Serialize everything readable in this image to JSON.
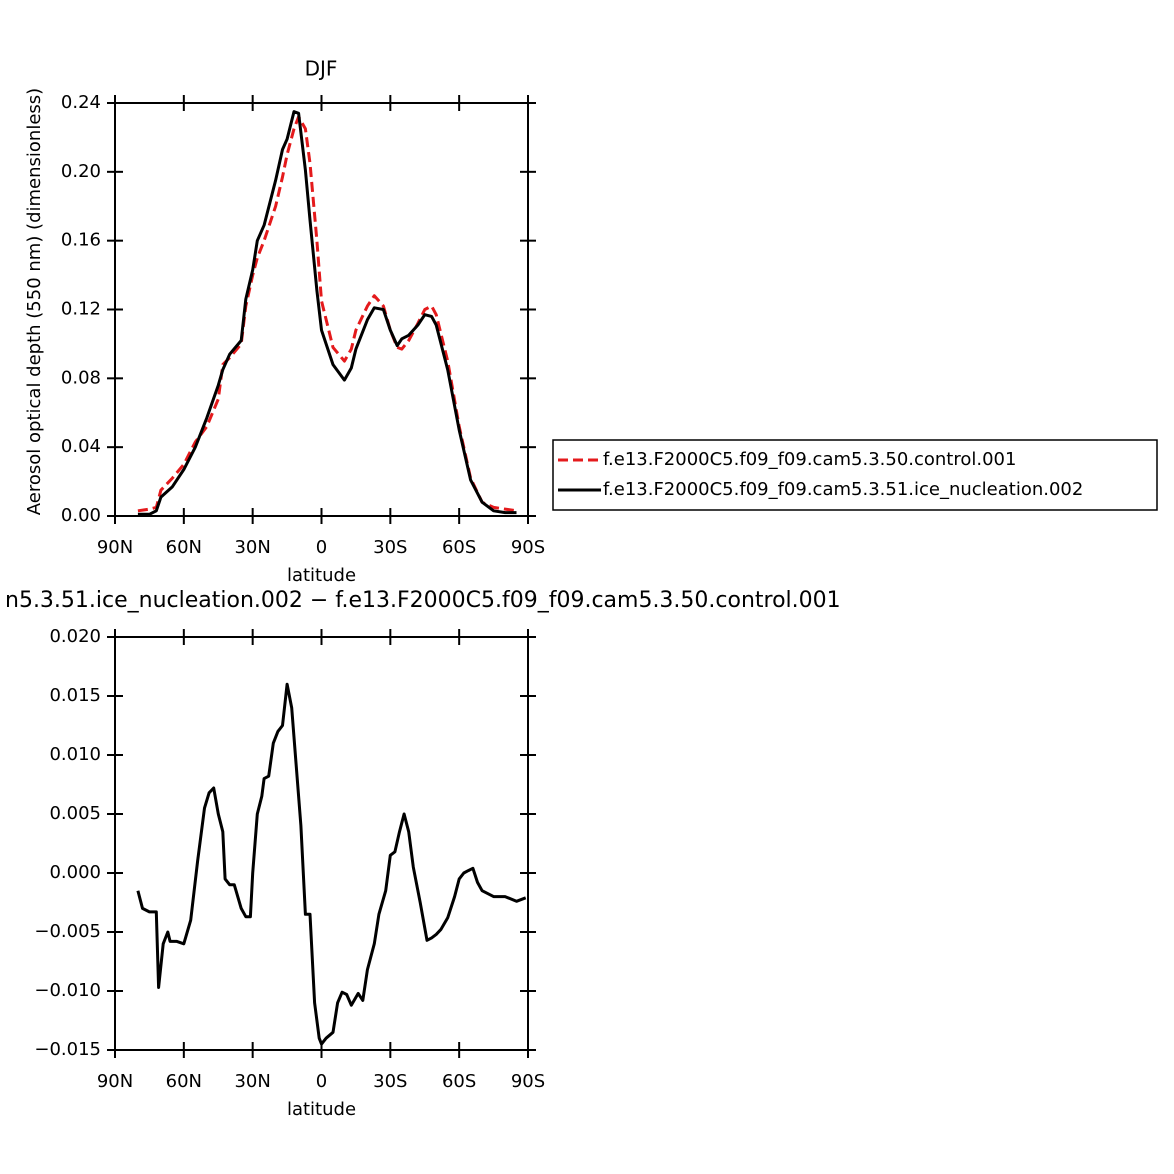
{
  "chart_data": [
    {
      "type": "line",
      "title": "DJF",
      "x_label": "latitude",
      "y_label": "Aerosol optical depth (550 nm) (dimensionless)",
      "xlim": [
        90,
        -90
      ],
      "ylim": [
        0,
        0.24
      ],
      "xticks": [
        {
          "value": 90,
          "label": "90N"
        },
        {
          "value": 60,
          "label": "60N"
        },
        {
          "value": 30,
          "label": "30N"
        },
        0,
        {
          "value": -30,
          "label": "30S"
        },
        {
          "value": -60,
          "label": "60S"
        },
        {
          "value": -90,
          "label": "90S"
        }
      ],
      "yticks": [
        {
          "value": 0,
          "label": "0.00"
        },
        0.04,
        0.08,
        0.12,
        0.16,
        {
          "value": 0.2,
          "label": "0.20"
        },
        0.24
      ],
      "legend": "right",
      "x": [
        80,
        75,
        72,
        70,
        65,
        60,
        55,
        50,
        45,
        43,
        40,
        35,
        33,
        30,
        28,
        25,
        20,
        17,
        15,
        12,
        10,
        7,
        5,
        2,
        0,
        -5,
        -10,
        -13,
        -15,
        -20,
        -23,
        -27,
        -30,
        -33,
        -35,
        -38,
        -42,
        -45,
        -48,
        -50,
        -55,
        -60,
        -65,
        -70,
        -75,
        -80,
        -85
      ],
      "series": [
        {
          "name": "f.e13.F2000C5.f09_f09.cam5.3.50.control.001",
          "color": "#e41a1c",
          "dash": true,
          "values": [
            0.003,
            0.004,
            0.005,
            0.015,
            0.022,
            0.03,
            0.043,
            0.052,
            0.068,
            0.088,
            0.092,
            0.1,
            0.122,
            0.14,
            0.15,
            0.16,
            0.18,
            0.197,
            0.21,
            0.225,
            0.232,
            0.225,
            0.205,
            0.16,
            0.125,
            0.098,
            0.09,
            0.097,
            0.108,
            0.122,
            0.128,
            0.122,
            0.108,
            0.098,
            0.097,
            0.102,
            0.112,
            0.12,
            0.122,
            0.117,
            0.09,
            0.052,
            0.022,
            0.008,
            0.005,
            0.004,
            0.003
          ]
        },
        {
          "name": "f.e13.F2000C5.f09_f09.cam5.3.51.ice_nucleation.002",
          "color": "#000000",
          "dash": false,
          "values": [
            0.001,
            0.001,
            0.003,
            0.011,
            0.017,
            0.027,
            0.04,
            0.057,
            0.076,
            0.085,
            0.094,
            0.102,
            0.126,
            0.143,
            0.16,
            0.169,
            0.195,
            0.213,
            0.219,
            0.235,
            0.234,
            0.201,
            0.172,
            0.131,
            0.108,
            0.088,
            0.079,
            0.086,
            0.097,
            0.114,
            0.121,
            0.12,
            0.108,
            0.099,
            0.103,
            0.105,
            0.111,
            0.117,
            0.116,
            0.111,
            0.085,
            0.05,
            0.021,
            0.008,
            0.003,
            0.002,
            0.002
          ]
        }
      ]
    },
    {
      "type": "line",
      "title": "n5.3.51.ice_nucleation.002 − f.e13.F2000C5.f09_f09.cam5.3.50.control.001",
      "x_label": "latitude",
      "xlim": [
        90,
        -90
      ],
      "ylim": [
        -0.015,
        0.02
      ],
      "xticks": [
        {
          "value": 90,
          "label": "90N"
        },
        {
          "value": 60,
          "label": "60N"
        },
        {
          "value": 30,
          "label": "30N"
        },
        0,
        {
          "value": -30,
          "label": "30S"
        },
        {
          "value": -60,
          "label": "60S"
        },
        {
          "value": -90,
          "label": "90S"
        }
      ],
      "yticks": [
        {
          "value": -0.015,
          "label": "−0.015"
        },
        {
          "value": -0.01,
          "label": "−0.010"
        },
        {
          "value": -0.005,
          "label": "−0.005"
        },
        {
          "value": 0,
          "label": "0.000"
        },
        0.005,
        {
          "value": 0.01,
          "label": "0.010"
        },
        0.015,
        {
          "value": 0.02,
          "label": "0.020"
        }
      ],
      "x": [
        80,
        78,
        75,
        72,
        71,
        69,
        67,
        66,
        63,
        60,
        57,
        54,
        51,
        49,
        47,
        45,
        43,
        42,
        40,
        38,
        35,
        33,
        31,
        30,
        28,
        26,
        25,
        23,
        21,
        19,
        17,
        15,
        13,
        11,
        9,
        7,
        5,
        3,
        1,
        0,
        -2,
        -5,
        -7,
        -9,
        -11,
        -13,
        -16,
        -18,
        -20,
        -23,
        -25,
        -28,
        -30,
        -32,
        -34,
        -36,
        -38,
        -40,
        -43,
        -46,
        -48,
        -50,
        -52,
        -55,
        -58,
        -60,
        -62,
        -64,
        -66,
        -68,
        -70,
        -75,
        -80,
        -85,
        -89
      ],
      "series": [
        {
          "color": "#000000",
          "dash": false,
          "values": [
            -0.0015,
            -0.003,
            -0.0033,
            -0.0033,
            -0.0097,
            -0.006,
            -0.005,
            -0.0058,
            -0.0058,
            -0.006,
            -0.004,
            0.001,
            0.0055,
            0.0068,
            0.0072,
            0.005,
            0.0035,
            -0.0005,
            -0.001,
            -0.001,
            -0.003,
            -0.0037,
            -0.0037,
            0.0,
            0.005,
            0.0065,
            0.008,
            0.0082,
            0.011,
            0.012,
            0.0125,
            0.016,
            0.014,
            0.009,
            0.004,
            -0.0035,
            -0.0035,
            -0.011,
            -0.014,
            -0.0145,
            -0.014,
            -0.0135,
            -0.011,
            -0.0101,
            -0.0103,
            -0.0112,
            -0.0102,
            -0.0108,
            -0.0082,
            -0.006,
            -0.0035,
            -0.0015,
            0.0015,
            0.0018,
            0.0035,
            0.005,
            0.0035,
            0.0005,
            -0.0025,
            -0.0057,
            -0.0055,
            -0.0052,
            -0.0048,
            -0.0038,
            -0.002,
            -0.0005,
            0.0,
            0.0002,
            0.0004,
            -0.0008,
            -0.0015,
            -0.002,
            -0.002,
            -0.0024,
            -0.0021
          ]
        }
      ]
    }
  ]
}
